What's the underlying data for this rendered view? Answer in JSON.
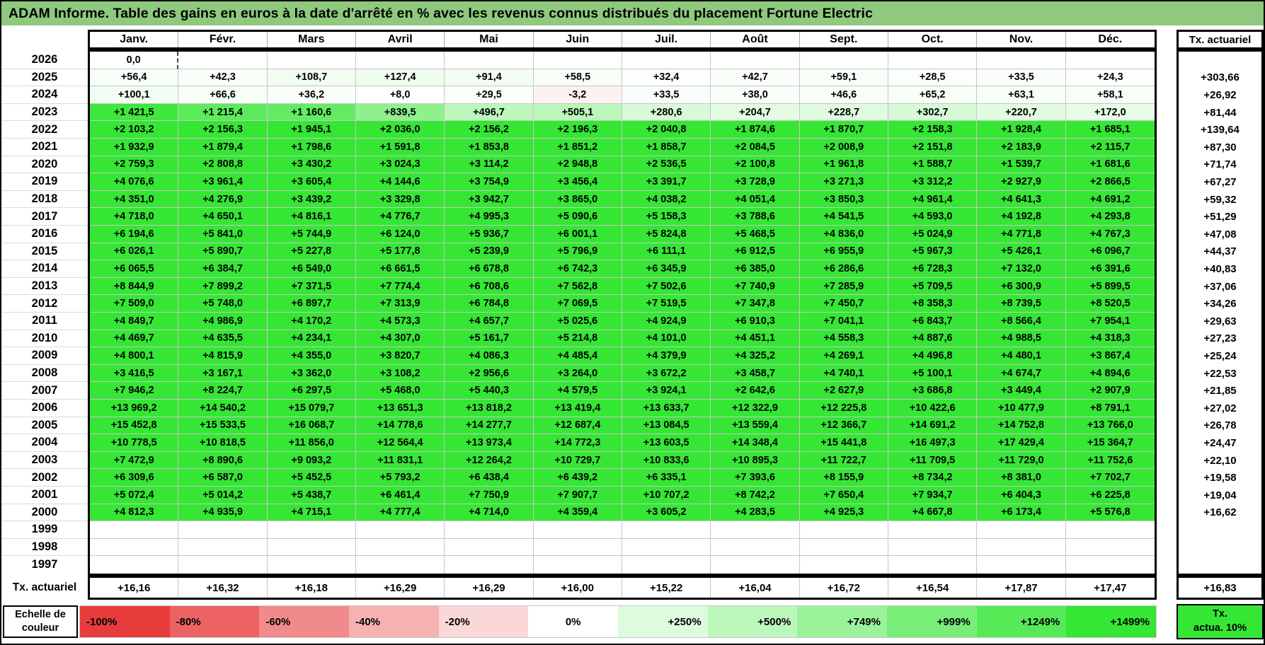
{
  "title": "ADAM Informe. Table des gains en euros à la date d'arrêté en % avec les revenus connus distribués du placement Fortune Electric",
  "colors": {
    "title_bg": "#8FC97E",
    "green_full": "#35E635",
    "red_full": "#E83C3C",
    "grid_line": "#C6C6C6",
    "green_max": 1499,
    "red_min": -100
  },
  "selection_marker": {
    "year": "2026",
    "col_index": 0
  },
  "chart_data": {
    "type": "heatmap",
    "note": "gains in euros per year/month, colored by the color scale"
  },
  "table": {
    "columns": [
      "Janv.",
      "Févr.",
      "Mars",
      "Avril",
      "Mai",
      "Juin",
      "Juil.",
      "Août",
      "Sept.",
      "Oct.",
      "Nov.",
      "Déc."
    ],
    "right_header": "Tx. actuariel",
    "rows": [
      {
        "year": "2026",
        "cells": [
          "0,0",
          "",
          "",
          "",
          "",
          "",
          "",
          "",
          "",
          "",
          "",
          ""
        ],
        "tx": ""
      },
      {
        "year": "2025",
        "cells": [
          "+56,4",
          "+42,3",
          "+108,7",
          "+127,4",
          "+91,4",
          "+58,5",
          "+32,4",
          "+42,7",
          "+59,1",
          "+28,5",
          "+33,5",
          "+24,3"
        ],
        "tx": "+303,66"
      },
      {
        "year": "2024",
        "cells": [
          "+100,1",
          "+66,6",
          "+36,2",
          "+8,0",
          "+29,5",
          "-3,2",
          "+33,5",
          "+38,0",
          "+46,6",
          "+65,2",
          "+63,1",
          "+58,1"
        ],
        "tx": "+26,92"
      },
      {
        "year": "2023",
        "cells": [
          "+1 421,5",
          "+1 215,4",
          "+1 160,6",
          "+839,5",
          "+496,7",
          "+505,1",
          "+280,6",
          "+204,7",
          "+228,7",
          "+302,7",
          "+220,7",
          "+172,0"
        ],
        "tx": "+81,44"
      },
      {
        "year": "2022",
        "cells": [
          "+2 103,2",
          "+2 156,3",
          "+1 945,1",
          "+2 036,0",
          "+2 156,2",
          "+2 196,3",
          "+2 040,8",
          "+1 874,6",
          "+1 870,7",
          "+2 158,3",
          "+1 928,4",
          "+1 685,1"
        ],
        "tx": "+139,64"
      },
      {
        "year": "2021",
        "cells": [
          "+1 932,9",
          "+1 879,4",
          "+1 798,6",
          "+1 591,8",
          "+1 853,8",
          "+1 851,2",
          "+1 858,7",
          "+2 084,5",
          "+2 008,9",
          "+2 151,8",
          "+2 183,9",
          "+2 115,7"
        ],
        "tx": "+87,30"
      },
      {
        "year": "2020",
        "cells": [
          "+2 759,3",
          "+2 808,8",
          "+3 430,2",
          "+3 024,3",
          "+3 114,2",
          "+2 948,8",
          "+2 536,5",
          "+2 100,8",
          "+1 961,8",
          "+1 588,7",
          "+1 539,7",
          "+1 681,6"
        ],
        "tx": "+71,74"
      },
      {
        "year": "2019",
        "cells": [
          "+4 076,6",
          "+3 961,4",
          "+3 605,4",
          "+4 144,6",
          "+3 754,9",
          "+3 456,4",
          "+3 391,7",
          "+3 728,9",
          "+3 271,3",
          "+3 312,2",
          "+2 927,9",
          "+2 866,5"
        ],
        "tx": "+67,27"
      },
      {
        "year": "2018",
        "cells": [
          "+4 351,0",
          "+4 276,9",
          "+3 439,2",
          "+3 329,8",
          "+3 942,7",
          "+3 865,0",
          "+4 038,2",
          "+4 051,4",
          "+3 850,3",
          "+4 961,4",
          "+4 641,3",
          "+4 691,2"
        ],
        "tx": "+59,32"
      },
      {
        "year": "2017",
        "cells": [
          "+4 718,0",
          "+4 650,1",
          "+4 816,1",
          "+4 776,7",
          "+4 995,3",
          "+5 090,6",
          "+5 158,3",
          "+3 788,6",
          "+4 541,5",
          "+4 593,0",
          "+4 192,8",
          "+4 293,8"
        ],
        "tx": "+51,29"
      },
      {
        "year": "2016",
        "cells": [
          "+6 194,6",
          "+5 841,0",
          "+5 744,9",
          "+6 124,0",
          "+5 936,7",
          "+6 001,1",
          "+5 824,8",
          "+5 468,5",
          "+4 836,0",
          "+5 024,9",
          "+4 771,8",
          "+4 767,3"
        ],
        "tx": "+47,08"
      },
      {
        "year": "2015",
        "cells": [
          "+6 026,1",
          "+5 890,7",
          "+5 227,8",
          "+5 177,8",
          "+5 239,9",
          "+5 796,9",
          "+6 111,1",
          "+6 912,5",
          "+6 955,9",
          "+5 967,3",
          "+5 426,1",
          "+6 096,7"
        ],
        "tx": "+44,37"
      },
      {
        "year": "2014",
        "cells": [
          "+6 065,5",
          "+6 384,7",
          "+6 549,0",
          "+6 661,5",
          "+6 678,8",
          "+6 742,3",
          "+6 345,9",
          "+6 385,0",
          "+6 286,6",
          "+6 728,3",
          "+7 132,0",
          "+6 391,6"
        ],
        "tx": "+40,83"
      },
      {
        "year": "2013",
        "cells": [
          "+8 844,9",
          "+7 899,2",
          "+7 371,5",
          "+7 774,4",
          "+6 708,6",
          "+7 562,8",
          "+7 502,6",
          "+7 740,9",
          "+7 285,9",
          "+5 709,5",
          "+6 300,9",
          "+5 899,5"
        ],
        "tx": "+37,06"
      },
      {
        "year": "2012",
        "cells": [
          "+7 509,0",
          "+5 748,0",
          "+6 897,7",
          "+7 313,9",
          "+6 784,8",
          "+7 069,5",
          "+7 519,5",
          "+7 347,8",
          "+7 450,7",
          "+8 358,3",
          "+8 739,5",
          "+8 520,5"
        ],
        "tx": "+34,26"
      },
      {
        "year": "2011",
        "cells": [
          "+4 849,7",
          "+4 986,9",
          "+4 170,2",
          "+4 573,3",
          "+4 657,7",
          "+5 025,6",
          "+4 924,9",
          "+6 910,3",
          "+7 041,1",
          "+6 843,7",
          "+8 566,4",
          "+7 954,1"
        ],
        "tx": "+29,63"
      },
      {
        "year": "2010",
        "cells": [
          "+4 469,7",
          "+4 635,5",
          "+4 234,1",
          "+4 307,0",
          "+5 161,7",
          "+5 214,8",
          "+4 101,0",
          "+4 451,1",
          "+4 558,3",
          "+4 887,6",
          "+4 988,5",
          "+4 318,3"
        ],
        "tx": "+27,23"
      },
      {
        "year": "2009",
        "cells": [
          "+4 800,1",
          "+4 815,9",
          "+4 355,0",
          "+3 820,7",
          "+4 086,3",
          "+4 485,4",
          "+4 379,9",
          "+4 325,2",
          "+4 269,1",
          "+4 496,8",
          "+4 480,1",
          "+3 867,4"
        ],
        "tx": "+25,24"
      },
      {
        "year": "2008",
        "cells": [
          "+3 416,5",
          "+3 167,1",
          "+3 362,0",
          "+3 108,2",
          "+2 956,6",
          "+3 264,0",
          "+3 672,2",
          "+3 458,7",
          "+4 740,1",
          "+5 100,1",
          "+4 674,7",
          "+4 894,6"
        ],
        "tx": "+22,53"
      },
      {
        "year": "2007",
        "cells": [
          "+7 946,2",
          "+8 224,7",
          "+6 297,5",
          "+5 468,0",
          "+5 440,3",
          "+4 579,5",
          "+3 924,1",
          "+2 642,6",
          "+2 627,9",
          "+3 686,8",
          "+3 449,4",
          "+2 907,9"
        ],
        "tx": "+21,85"
      },
      {
        "year": "2006",
        "cells": [
          "+13 969,2",
          "+14 540,2",
          "+15 079,7",
          "+13 651,3",
          "+13 818,2",
          "+13 419,4",
          "+13 633,7",
          "+12 322,9",
          "+12 225,8",
          "+10 422,6",
          "+10 477,9",
          "+8 791,1"
        ],
        "tx": "+27,02"
      },
      {
        "year": "2005",
        "cells": [
          "+15 452,8",
          "+15 533,5",
          "+16 068,7",
          "+14 778,6",
          "+14 277,7",
          "+12 687,4",
          "+13 084,5",
          "+13 559,4",
          "+12 366,7",
          "+14 691,2",
          "+14 752,8",
          "+13 766,0"
        ],
        "tx": "+26,78"
      },
      {
        "year": "2004",
        "cells": [
          "+10 778,5",
          "+10 818,5",
          "+11 856,0",
          "+12 564,4",
          "+13 973,4",
          "+14 772,3",
          "+13 603,5",
          "+14 348,4",
          "+15 441,8",
          "+16 497,3",
          "+17 429,4",
          "+15 364,7"
        ],
        "tx": "+24,47"
      },
      {
        "year": "2003",
        "cells": [
          "+7 472,9",
          "+8 890,6",
          "+9 093,2",
          "+11 831,1",
          "+12 264,2",
          "+10 729,7",
          "+10 833,6",
          "+10 895,3",
          "+11 722,7",
          "+11 709,5",
          "+11 729,0",
          "+11 752,6"
        ],
        "tx": "+22,10"
      },
      {
        "year": "2002",
        "cells": [
          "+6 309,6",
          "+6 587,0",
          "+5 452,5",
          "+5 793,2",
          "+6 438,4",
          "+6 439,2",
          "+6 335,1",
          "+7 393,6",
          "+8 155,9",
          "+8 734,2",
          "+8 381,0",
          "+7 702,7"
        ],
        "tx": "+19,58"
      },
      {
        "year": "2001",
        "cells": [
          "+5 072,4",
          "+5 014,2",
          "+5 438,7",
          "+6 461,4",
          "+7 750,9",
          "+7 907,7",
          "+10 707,2",
          "+8 742,2",
          "+7 650,4",
          "+7 934,7",
          "+6 404,3",
          "+6 225,8"
        ],
        "tx": "+19,04"
      },
      {
        "year": "2000",
        "cells": [
          "+4 812,3",
          "+4 935,9",
          "+4 715,1",
          "+4 777,4",
          "+4 714,0",
          "+4 359,4",
          "+3 605,2",
          "+4 283,5",
          "+4 925,3",
          "+4 667,8",
          "+6 173,4",
          "+5 576,8"
        ],
        "tx": "+16,62"
      },
      {
        "year": "1999",
        "cells": [
          "",
          "",
          "",
          "",
          "",
          "",
          "",
          "",
          "",
          "",
          "",
          ""
        ],
        "tx": ""
      },
      {
        "year": "1998",
        "cells": [
          "",
          "",
          "",
          "",
          "",
          "",
          "",
          "",
          "",
          "",
          "",
          ""
        ],
        "tx": ""
      },
      {
        "year": "1997",
        "cells": [
          "",
          "",
          "",
          "",
          "",
          "",
          "",
          "",
          "",
          "",
          "",
          ""
        ],
        "tx": ""
      }
    ]
  },
  "footer": {
    "label": "Tx. actuariel",
    "cells": [
      "+16,16",
      "+16,32",
      "+16,18",
      "+16,29",
      "+16,29",
      "+16,00",
      "+15,22",
      "+16,04",
      "+16,72",
      "+16,54",
      "+17,87",
      "+17,47"
    ],
    "total": "+16,83"
  },
  "scale": {
    "label_lines": [
      "Echelle de",
      "couleur"
    ],
    "stops": [
      {
        "label": "-100%",
        "value": -100
      },
      {
        "label": "-80%",
        "value": -80
      },
      {
        "label": "-60%",
        "value": -60
      },
      {
        "label": "-40%",
        "value": -40
      },
      {
        "label": "-20%",
        "value": -20
      },
      {
        "label": "0%",
        "value": 0
      },
      {
        "label": "+250%",
        "value": 250
      },
      {
        "label": "+500%",
        "value": 500
      },
      {
        "label": "+749%",
        "value": 749
      },
      {
        "label": "+999%",
        "value": 999
      },
      {
        "label": "+1249%",
        "value": 1249
      },
      {
        "label": "+1499%",
        "value": 1499
      }
    ],
    "corner_lines": [
      "Tx.",
      "actua. 10%"
    ]
  }
}
